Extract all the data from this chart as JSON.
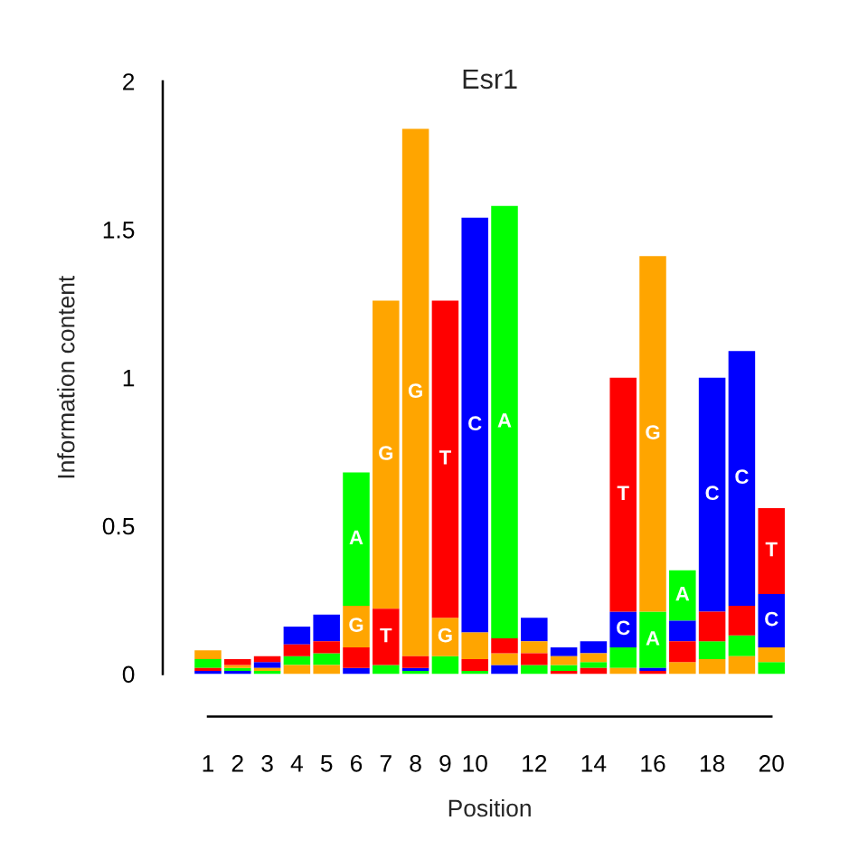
{
  "chart_data": {
    "type": "bar",
    "title": "Esr1",
    "xlabel": "Position",
    "ylabel": "Information content",
    "categories": [
      "1",
      "2",
      "3",
      "4",
      "5",
      "6",
      "7",
      "8",
      "9",
      "10",
      null,
      "12",
      null,
      "14",
      null,
      "16",
      null,
      "18",
      null,
      "20"
    ],
    "ylim": [
      0,
      2
    ],
    "yticks": [
      0,
      0.5,
      1,
      1.5,
      2
    ],
    "series": [
      {
        "name": "A",
        "color": "#00ff00",
        "values": [
          0.03,
          0.01,
          0.01,
          0.03,
          0.04,
          0.45,
          0.03,
          0.01,
          0.06,
          0.01,
          1.46,
          0.03,
          0.02,
          0.02,
          0.07,
          0.19,
          0.17,
          0.06,
          0.07,
          0.04
        ],
        "base": [
          0.02,
          0.01,
          0,
          0.03,
          0.03,
          0.23,
          0,
          0,
          0,
          0,
          0.12,
          0,
          0.01,
          0.02,
          0.02,
          0.02,
          0.18,
          0.05,
          0.06,
          0
        ]
      },
      {
        "name": "C",
        "color": "#0000ff",
        "values": [
          0.01,
          0.01,
          0.02,
          0.06,
          0.09,
          0.02,
          null,
          0.01,
          null,
          1.4,
          0.03,
          0.08,
          0.03,
          0.04,
          0.12,
          0.01,
          0.07,
          0.79,
          0.86,
          0.18
        ],
        "base": [
          0,
          0,
          0.02,
          0.1,
          0.11,
          0,
          null,
          0.01,
          null,
          0.14,
          0,
          0.11,
          0.06,
          0.07,
          0.09,
          0.01,
          0.11,
          0.21,
          0.23,
          0.09
        ]
      },
      {
        "name": "G",
        "color": "#ffa500",
        "values": [
          0.03,
          0.01,
          0.01,
          0.03,
          0.03,
          0.14,
          1.04,
          1.78,
          0.13,
          0.09,
          0.04,
          0.04,
          0.03,
          0.03,
          0.02,
          1.2,
          0.04,
          0.05,
          0.06,
          0.05
        ],
        "base": [
          0.05,
          0.02,
          0.01,
          0,
          0,
          0.09,
          0.22,
          0.06,
          0.06,
          0.05,
          0.03,
          0.07,
          0.03,
          0.04,
          0,
          0.21,
          0,
          0,
          0,
          0.04
        ]
      },
      {
        "name": "T",
        "color": "#ff0000",
        "values": [
          0.01,
          0.02,
          0.02,
          0.04,
          0.04,
          0.07,
          0.19,
          0.04,
          1.07,
          0.04,
          0.05,
          0.04,
          0.01,
          0.02,
          0.79,
          0.01,
          0.07,
          0.1,
          0.1,
          0.29
        ],
        "base": [
          0.01,
          0.03,
          0.04,
          0.06,
          0.07,
          0.02,
          0.03,
          0.02,
          0.19,
          0.01,
          0.07,
          0.03,
          0,
          0,
          0.21,
          0,
          0.04,
          0.11,
          0.13,
          0.27
        ]
      }
    ]
  }
}
